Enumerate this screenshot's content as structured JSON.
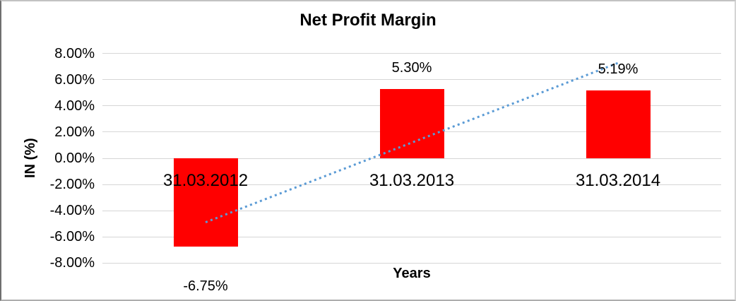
{
  "chart_data": {
    "type": "bar",
    "title": "Net Profit Margin",
    "xlabel": "Years",
    "ylabel": "IN (%)",
    "categories": [
      "31.03.2012",
      "31.03.2013",
      "31.03.2014"
    ],
    "values": [
      -6.75,
      5.3,
      5.19
    ],
    "data_labels": [
      "-6.75%",
      "5.30%",
      "5.19%"
    ],
    "bar_color": "#ff0000",
    "grid": true,
    "legend": "none",
    "y_axis": {
      "min": -8,
      "max": 8,
      "step": 2,
      "ticks": [
        {
          "value": 8,
          "label": "8.00%"
        },
        {
          "value": 6,
          "label": "6.00%"
        },
        {
          "value": 4,
          "label": "4.00%"
        },
        {
          "value": 2,
          "label": "2.00%"
        },
        {
          "value": 0,
          "label": "0.00%"
        },
        {
          "value": -2,
          "label": "-2.00%"
        },
        {
          "value": -4,
          "label": "-4.00%"
        },
        {
          "value": -6,
          "label": "-6.00%"
        },
        {
          "value": -8,
          "label": "-8.00%"
        }
      ]
    },
    "trendline": {
      "style": "dotted",
      "color": "#5b9bd5",
      "start_value": -4.88,
      "end_value": 7.27
    }
  }
}
